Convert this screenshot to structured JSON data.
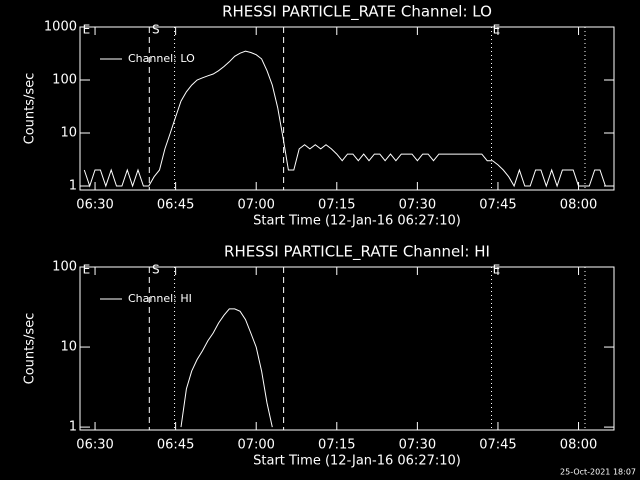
{
  "chart_data": [
    {
      "type": "line",
      "title": "RHESSI PARTICLE_RATE Channel: LO",
      "x_label": "Start Time (12-Jan-16 06:27:10)",
      "y_label": "Counts/sec",
      "log_y": true,
      "xlim": [
        27.2,
        126.6
      ],
      "ylim": [
        0.84,
        1000
      ],
      "yticks": [
        1,
        10,
        100,
        1000
      ],
      "xticks": [
        {
          "value": 30,
          "label": "06:30"
        },
        {
          "value": 45,
          "label": "06:45"
        },
        {
          "value": 60,
          "label": "07:00"
        },
        {
          "value": 75,
          "label": "07:15"
        },
        {
          "value": 90,
          "label": "07:30"
        },
        {
          "value": 105,
          "label": "07:45"
        },
        {
          "value": 120,
          "label": "08:00"
        }
      ],
      "vlines": [
        {
          "x": 40.1,
          "style": "dashed"
        },
        {
          "x": 44.8,
          "style": "dotted"
        },
        {
          "x": 65.1,
          "style": "dashed"
        },
        {
          "x": 103.8,
          "style": "dotted"
        },
        {
          "x": 121.2,
          "style": "dotted"
        }
      ],
      "annotations": [
        {
          "text": "E",
          "x": 27.7
        },
        {
          "text": "S",
          "x": 40.6
        },
        {
          "text": "E",
          "x": 104.0
        }
      ],
      "legend": "upper left",
      "x": [
        28,
        29,
        30,
        31,
        32,
        33,
        34,
        35,
        36,
        37,
        38,
        39,
        40,
        41,
        42,
        43,
        44,
        45,
        46,
        47,
        48,
        49,
        50,
        51,
        52,
        53,
        54,
        55,
        56,
        57,
        58,
        59,
        60,
        61,
        62,
        63,
        64,
        65,
        66,
        67,
        68,
        69,
        70,
        71,
        72,
        73,
        74,
        75,
        76,
        77,
        78,
        79,
        80,
        81,
        82,
        83,
        84,
        85,
        86,
        87,
        88,
        89,
        90,
        91,
        92,
        93,
        94,
        95,
        96,
        97,
        98,
        99,
        100,
        101,
        102,
        103,
        104,
        105,
        106,
        107,
        108,
        109,
        110,
        111,
        112,
        113,
        114,
        115,
        116,
        117,
        118,
        119,
        120,
        121,
        122,
        123,
        124,
        125,
        126
      ],
      "series": [
        {
          "name": "Channel: LO",
          "color": "#ffffff",
          "values": [
            2,
            1,
            2,
            2,
            1,
            2,
            1,
            1,
            2,
            1,
            2,
            1,
            1,
            1.5,
            2,
            5,
            10,
            20,
            40,
            60,
            80,
            100,
            110,
            120,
            130,
            150,
            180,
            220,
            280,
            320,
            350,
            330,
            300,
            250,
            150,
            80,
            30,
            8,
            2,
            2,
            5,
            6,
            5,
            6,
            5,
            6,
            5,
            4,
            3,
            4,
            4,
            3,
            4,
            3,
            4,
            4,
            3,
            4,
            3,
            4,
            4,
            4,
            3,
            4,
            4,
            3,
            4,
            4,
            4,
            4,
            4,
            4,
            4,
            4,
            4,
            3,
            3,
            2.5,
            2,
            1.5,
            1,
            2,
            1,
            1,
            2,
            2,
            1,
            2,
            1,
            2,
            2,
            2,
            1,
            1,
            1,
            2,
            2,
            1,
            1
          ]
        }
      ]
    },
    {
      "type": "line",
      "title": "RHESSI PARTICLE_RATE Channel: HI",
      "x_label": "Start Time (12-Jan-16 06:27:10)",
      "y_label": "Counts/sec",
      "log_y": true,
      "xlim": [
        27.2,
        126.6
      ],
      "ylim": [
        0.92,
        100
      ],
      "yticks": [
        1,
        10,
        100
      ],
      "xticks": [
        {
          "value": 30,
          "label": "06:30"
        },
        {
          "value": 45,
          "label": "06:45"
        },
        {
          "value": 60,
          "label": "07:00"
        },
        {
          "value": 75,
          "label": "07:15"
        },
        {
          "value": 90,
          "label": "07:30"
        },
        {
          "value": 105,
          "label": "07:45"
        },
        {
          "value": 120,
          "label": "08:00"
        }
      ],
      "vlines": [
        {
          "x": 40.1,
          "style": "dashed"
        },
        {
          "x": 44.8,
          "style": "dotted"
        },
        {
          "x": 65.1,
          "style": "dashed"
        },
        {
          "x": 103.8,
          "style": "dotted"
        },
        {
          "x": 121.2,
          "style": "dotted"
        }
      ],
      "annotations": [
        {
          "text": "E",
          "x": 27.7
        },
        {
          "text": "S",
          "x": 40.6
        },
        {
          "text": "E",
          "x": 104.0
        }
      ],
      "legend": "upper left",
      "x": [
        46,
        47,
        48,
        49,
        50,
        51,
        52,
        53,
        54,
        55,
        56,
        57,
        58,
        59,
        60,
        61,
        62,
        63
      ],
      "series": [
        {
          "name": "Channel: HI",
          "color": "#ffffff",
          "values": [
            1,
            3,
            5,
            7,
            9,
            12,
            15,
            20,
            25,
            30,
            30,
            28,
            22,
            15,
            10,
            5,
            2,
            1
          ]
        }
      ]
    }
  ],
  "footer": "25-Oct-2021 18:07"
}
